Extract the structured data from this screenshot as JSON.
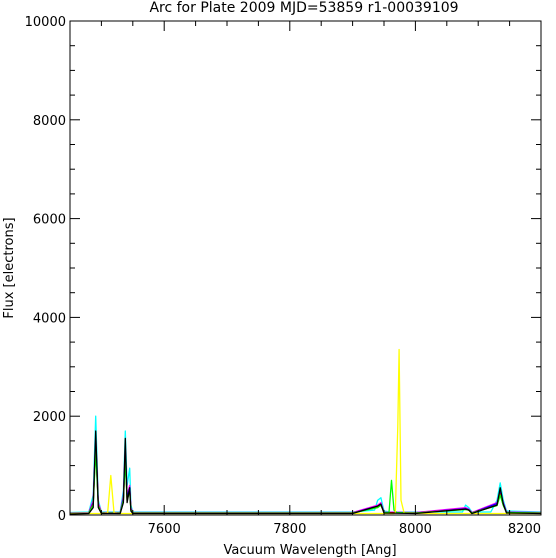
{
  "chart_data": {
    "type": "line",
    "title": "Arc for Plate 2009  MJD=53859  r1-00039109",
    "xlabel": "Vacuum Wavelength [Ang]",
    "ylabel": "Flux [electrons]",
    "xlim": [
      7450,
      8200
    ],
    "ylim": [
      0,
      10000
    ],
    "x_ticks": [
      7600,
      7800,
      8000,
      8200
    ],
    "x_tick_labels": [
      "7600",
      "7800",
      "8000",
      "8200"
    ],
    "y_ticks": [
      0,
      2000,
      4000,
      6000,
      8000,
      10000
    ],
    "y_tick_labels": [
      "0",
      "2000",
      "4000",
      "6000",
      "8000",
      "10000"
    ],
    "grid": false,
    "series": [
      {
        "color": "#00ffff",
        "x": [
          7450,
          7480,
          7487,
          7491,
          7495,
          7500,
          7530,
          7535,
          7538,
          7541,
          7545,
          7547,
          7550,
          7600,
          7700,
          7800,
          7900,
          7935,
          7940,
          7945,
          7950,
          7960,
          8000,
          8075,
          8080,
          8085,
          8090,
          8120,
          8130,
          8135,
          8140,
          8145,
          8200
        ],
        "y": [
          50,
          60,
          400,
          2000,
          300,
          60,
          60,
          500,
          1700,
          600,
          950,
          200,
          60,
          60,
          60,
          60,
          60,
          100,
          300,
          350,
          80,
          60,
          60,
          60,
          200,
          150,
          60,
          60,
          300,
          650,
          300,
          80,
          60
        ]
      },
      {
        "color": "#ff00ff",
        "x": [
          7450,
          7480,
          7487,
          7491,
          7495,
          7500,
          7530,
          7535,
          7538,
          7541,
          7545,
          7547,
          7550,
          7600,
          7700,
          7800,
          7900,
          7940,
          7945,
          7950,
          8000,
          8080,
          8085,
          8090,
          8130,
          8135,
          8140,
          8145,
          8200
        ],
        "y": [
          40,
          50,
          300,
          1600,
          250,
          50,
          50,
          400,
          1400,
          400,
          600,
          150,
          50,
          50,
          50,
          50,
          50,
          200,
          250,
          60,
          50,
          150,
          120,
          50,
          250,
          500,
          250,
          60,
          50
        ]
      },
      {
        "color": "#0000ff",
        "x": [
          7450,
          7480,
          7487,
          7491,
          7495,
          7500,
          7530,
          7535,
          7538,
          7541,
          7545,
          7547,
          7550,
          7600,
          7700,
          7800,
          7900,
          7940,
          7945,
          7950,
          8000,
          8080,
          8085,
          8090,
          8130,
          8135,
          8140,
          8145,
          8200
        ],
        "y": [
          30,
          40,
          250,
          1500,
          200,
          40,
          40,
          350,
          1300,
          350,
          550,
          120,
          40,
          40,
          40,
          40,
          40,
          180,
          220,
          50,
          40,
          130,
          110,
          40,
          230,
          450,
          230,
          50,
          40
        ]
      },
      {
        "color": "#ff0000",
        "x": [
          7450,
          7480,
          7487,
          7491,
          7495,
          7500,
          7530,
          7535,
          7538,
          7541,
          7545,
          7547,
          7550,
          7600,
          7700,
          7800,
          7900,
          7940,
          7945,
          7950,
          8000,
          8080,
          8085,
          8090,
          8130,
          8135,
          8140,
          8145,
          8200
        ],
        "y": [
          30,
          40,
          220,
          1400,
          200,
          40,
          40,
          300,
          1200,
          300,
          500,
          110,
          40,
          40,
          40,
          40,
          40,
          160,
          200,
          50,
          40,
          120,
          100,
          40,
          200,
          420,
          200,
          50,
          40
        ]
      },
      {
        "color": "#00ff00",
        "x": [
          7450,
          7480,
          7487,
          7491,
          7495,
          7500,
          7530,
          7535,
          7538,
          7541,
          7545,
          7547,
          7550,
          7600,
          7700,
          7800,
          7900,
          7940,
          7945,
          7950,
          7958,
          7962,
          7966,
          7970,
          8000,
          8080,
          8085,
          8090,
          8130,
          8135,
          8140,
          8145,
          8200
        ],
        "y": [
          30,
          40,
          200,
          1300,
          180,
          40,
          40,
          300,
          1100,
          300,
          480,
          100,
          40,
          40,
          40,
          40,
          40,
          150,
          200,
          50,
          50,
          700,
          100,
          50,
          40,
          110,
          100,
          40,
          190,
          400,
          190,
          50,
          40
        ]
      },
      {
        "color": "#ffff00",
        "x": [
          7450,
          7505,
          7510,
          7515,
          7520,
          7525,
          7600,
          7700,
          7800,
          7900,
          7965,
          7968,
          7972,
          7974,
          7977,
          7982,
          8000,
          8100,
          8200
        ],
        "y": [
          30,
          30,
          50,
          800,
          50,
          30,
          30,
          30,
          30,
          30,
          30,
          40,
          1800,
          3350,
          300,
          40,
          30,
          30,
          30
        ]
      },
      {
        "color": "#000000",
        "x": [
          7450,
          7480,
          7487,
          7491,
          7495,
          7500,
          7530,
          7535,
          7538,
          7541,
          7545,
          7547,
          7550,
          7600,
          7700,
          7800,
          7900,
          7940,
          7945,
          7950,
          8000,
          8080,
          8085,
          8090,
          8130,
          8135,
          8140,
          8145,
          8200
        ],
        "y": [
          20,
          30,
          150,
          1700,
          150,
          30,
          30,
          250,
          1550,
          250,
          550,
          80,
          30,
          30,
          30,
          30,
          30,
          180,
          220,
          40,
          30,
          120,
          100,
          30,
          200,
          550,
          220,
          40,
          30
        ]
      }
    ]
  }
}
